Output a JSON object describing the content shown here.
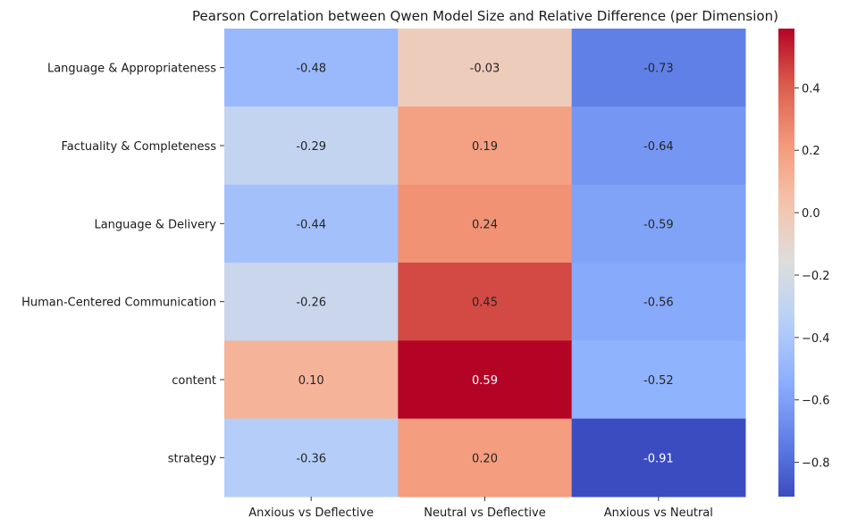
{
  "chart_data": {
    "type": "heatmap",
    "title": "Pearson Correlation between Qwen Model Size and Relative Difference (per Dimension)",
    "rows": [
      "Language & Appropriateness",
      "Factuality & Completeness",
      "Language & Delivery",
      "Human-Centered Communication",
      "content",
      "strategy"
    ],
    "columns": [
      "Anxious vs Deflective",
      "Neutral vs Deflective",
      "Anxious vs Neutral"
    ],
    "values": [
      [
        -0.48,
        -0.03,
        -0.73
      ],
      [
        -0.29,
        0.19,
        -0.64
      ],
      [
        -0.44,
        0.24,
        -0.59
      ],
      [
        -0.26,
        0.45,
        -0.56
      ],
      [
        0.1,
        0.59,
        -0.52
      ],
      [
        -0.36,
        0.2,
        -0.91
      ]
    ],
    "value_labels": [
      [
        "-0.48",
        "-0.03",
        "-0.73"
      ],
      [
        "-0.29",
        "0.19",
        "-0.64"
      ],
      [
        "-0.44",
        "0.24",
        "-0.59"
      ],
      [
        "-0.26",
        "0.45",
        "-0.56"
      ],
      [
        "0.10",
        "0.59",
        "-0.52"
      ],
      [
        "-0.36",
        "0.20",
        "-0.91"
      ]
    ],
    "colormap": "coolwarm",
    "vmin": -0.91,
    "vmax": 0.59,
    "colorbar_ticks": [
      0.4,
      0.2,
      0.0,
      -0.2,
      -0.4,
      -0.6,
      -0.8
    ],
    "colorbar_tick_labels": [
      "0.4",
      "0.2",
      "0.0",
      "−0.2",
      "−0.4",
      "−0.6",
      "−0.8"
    ]
  }
}
